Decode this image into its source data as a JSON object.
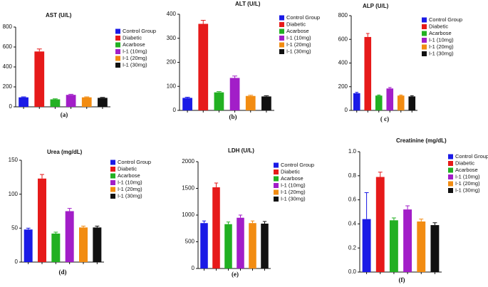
{
  "chart_data": [
    {
      "type": "bar",
      "title": "AST (U/L)",
      "caption": "(a)",
      "categories": [
        "Control Group",
        "Diabetic",
        "Acarbose",
        "I-1 (10mg)",
        "I-1 (20mg)",
        "I-1 (30mg)"
      ],
      "colors": [
        "#1a1ae6",
        "#e61a1a",
        "#22b022",
        "#a21ec8",
        "#f28c12",
        "#111111"
      ],
      "values": [
        95,
        555,
        75,
        120,
        95,
        90
      ],
      "errors": [
        5,
        25,
        5,
        6,
        5,
        5
      ],
      "ylim": [
        0,
        800
      ],
      "yticks": [
        0,
        200,
        400,
        600,
        800
      ]
    },
    {
      "type": "bar",
      "title": "ALT (U/L)",
      "caption": "(b)",
      "categories": [
        "Control Group",
        "Diabetic",
        "Acarbose",
        "I-1 (10mg)",
        "I-1 (20mg)",
        "I-1 (30mg)"
      ],
      "colors": [
        "#1a1ae6",
        "#e61a1a",
        "#22b022",
        "#a21ec8",
        "#f28c12",
        "#111111"
      ],
      "values": [
        52,
        360,
        75,
        135,
        60,
        58
      ],
      "errors": [
        3,
        15,
        3,
        8,
        3,
        3
      ],
      "ylim": [
        0,
        400
      ],
      "yticks": [
        0,
        100,
        200,
        300,
        400
      ]
    },
    {
      "type": "bar",
      "title": "ALP (U/L)",
      "caption": "( c)",
      "categories": [
        "Control Group",
        "Diabetic",
        "Acarbose",
        "I-1 (10mg)",
        "I-1 (20mg)",
        "I-1 (30mg)"
      ],
      "colors": [
        "#1a1ae6",
        "#e61a1a",
        "#22b022",
        "#a21ec8",
        "#f28c12",
        "#111111"
      ],
      "values": [
        145,
        620,
        125,
        185,
        125,
        118
      ],
      "errors": [
        8,
        30,
        5,
        8,
        5,
        5
      ],
      "ylim": [
        0,
        800
      ],
      "yticks": [
        0,
        200,
        400,
        600,
        800
      ]
    },
    {
      "type": "bar",
      "title": "Urea (mg/dL)",
      "caption": "(d)",
      "categories": [
        "Control Group",
        "Diabetic",
        "Acarbose",
        "I-1 (10mg)",
        "I-1 (20mg)",
        "I-1 (30mg)"
      ],
      "colors": [
        "#1a1ae6",
        "#e61a1a",
        "#22b022",
        "#a21ec8",
        "#f28c12",
        "#111111"
      ],
      "values": [
        48,
        123,
        42,
        75,
        51,
        51
      ],
      "errors": [
        2,
        6,
        2,
        4,
        2,
        2
      ],
      "ylim": [
        0,
        150
      ],
      "yticks": [
        0,
        50,
        100,
        150
      ]
    },
    {
      "type": "bar",
      "title": "LDH (U/L)",
      "caption": "(e)",
      "categories": [
        "Control Group",
        "Diabetic",
        "Acarbose",
        "I-1 (10mg)",
        "I-1 (20mg)",
        "I-1 (30mg)"
      ],
      "colors": [
        "#1a1ae6",
        "#e61a1a",
        "#22b022",
        "#a21ec8",
        "#f28c12",
        "#111111"
      ],
      "values": [
        850,
        1520,
        830,
        950,
        850,
        840
      ],
      "errors": [
        40,
        80,
        40,
        50,
        40,
        40
      ],
      "ylim": [
        0,
        2000
      ],
      "yticks": [
        0,
        500,
        1000,
        1500,
        2000
      ]
    },
    {
      "type": "bar",
      "title": "Creatinine (mg/dL)",
      "caption": "(f)",
      "categories": [
        "Control Group",
        "Diabetic",
        "Acarbose",
        "I-1 (10mg)",
        "I-1 (20mg)",
        "I-1 (30mg)"
      ],
      "colors": [
        "#1a1ae6",
        "#e61a1a",
        "#22b022",
        "#a21ec8",
        "#f28c12",
        "#111111"
      ],
      "values": [
        0.44,
        0.79,
        0.43,
        0.52,
        0.42,
        0.39
      ],
      "errors": [
        0.22,
        0.04,
        0.02,
        0.03,
        0.02,
        0.02
      ],
      "ylim": [
        0,
        1
      ],
      "yticks": [
        {
          "value": 0,
          "label": "0.0"
        },
        0.2,
        0.4,
        0.6,
        0.8,
        {
          "value": 1,
          "label": "1.0"
        }
      ]
    }
  ]
}
